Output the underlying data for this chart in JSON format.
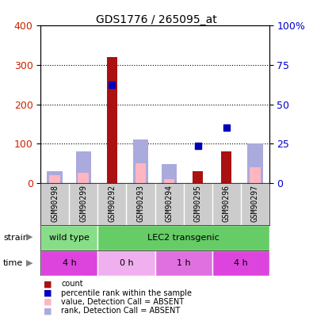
{
  "title": "GDS1776 / 265095_at",
  "samples": [
    "GSM90298",
    "GSM90299",
    "GSM90292",
    "GSM90293",
    "GSM90294",
    "GSM90295",
    "GSM90296",
    "GSM90297"
  ],
  "count_values": [
    null,
    null,
    320,
    null,
    null,
    30,
    80,
    null
  ],
  "rank_values_left": [
    null,
    null,
    250,
    null,
    null,
    95,
    140,
    null
  ],
  "absent_value": [
    20,
    25,
    null,
    50,
    10,
    null,
    null,
    40
  ],
  "absent_rank": [
    30,
    80,
    null,
    110,
    48,
    null,
    null,
    100
  ],
  "ylim_left": [
    0,
    400
  ],
  "ylim_right": [
    0,
    100
  ],
  "left_ticks": [
    0,
    100,
    200,
    300,
    400
  ],
  "right_ticks": [
    0,
    25,
    50,
    75,
    100
  ],
  "right_tick_labels": [
    "0",
    "25",
    "50",
    "75",
    "100%"
  ],
  "grid_lines": [
    100,
    200,
    300
  ],
  "strain_labels": [
    {
      "label": "wild type",
      "span": [
        0,
        2
      ],
      "color": "#88dd88"
    },
    {
      "label": "LEC2 transgenic",
      "span": [
        2,
        8
      ],
      "color": "#66cc66"
    }
  ],
  "time_labels": [
    {
      "label": "4 h",
      "span": [
        0,
        2
      ],
      "color": "#dd44dd"
    },
    {
      "label": "0 h",
      "span": [
        2,
        4
      ],
      "color": "#f0b0f0"
    },
    {
      "label": "1 h",
      "span": [
        4,
        6
      ],
      "color": "#e070e0"
    },
    {
      "label": "4 h",
      "span": [
        6,
        8
      ],
      "color": "#dd44dd"
    }
  ],
  "bar_color": "#aa1111",
  "rank_color": "#0000bb",
  "absent_val_color": "#ffb6c1",
  "absent_rank_color": "#aaaadd",
  "bar_width": 0.35,
  "absent_bar_width": 0.55,
  "gray_band_color": "#cccccc",
  "legend_items": [
    {
      "color": "#aa1111",
      "label": "count"
    },
    {
      "color": "#0000bb",
      "label": "percentile rank within the sample"
    },
    {
      "color": "#ffb6c1",
      "label": "value, Detection Call = ABSENT"
    },
    {
      "color": "#aaaadd",
      "label": "rank, Detection Call = ABSENT"
    }
  ],
  "left_tick_color": "#cc2200",
  "right_tick_color": "#0000cc"
}
